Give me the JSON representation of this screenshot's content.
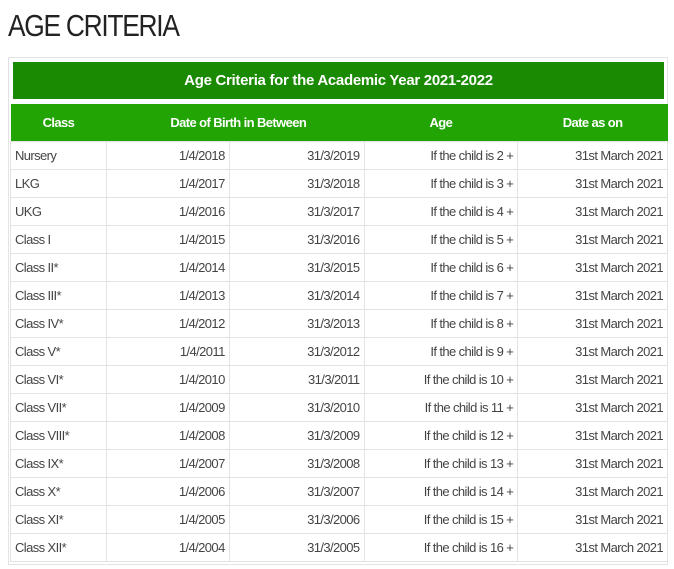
{
  "page_title": "AGE CRITERIA",
  "table_title": "Age Criteria for the Academic Year 2021-2022",
  "headers": [
    "Class",
    "Date of Birth in Between",
    "Age",
    "Date as on"
  ],
  "rows": [
    [
      "Nursery",
      "1/4/2018",
      "31/3/2019",
      "If the child is 2 +",
      "31st March 2021"
    ],
    [
      "LKG",
      "1/4/2017",
      "31/3/2018",
      "If the child is 3 +",
      "31st March 2021"
    ],
    [
      "UKG",
      "1/4/2016",
      "31/3/2017",
      "If the child is 4 +",
      "31st March 2021"
    ],
    [
      "Class I",
      "1/4/2015",
      "31/3/2016",
      "If the child is 5 +",
      "31st March 2021"
    ],
    [
      "Class II*",
      "1/4/2014",
      "31/3/2015",
      "If the child is 6 +",
      "31st March 2021"
    ],
    [
      "Class III*",
      "1/4/2013",
      "31/3/2014",
      "If the child is 7 +",
      "31st March 2021"
    ],
    [
      "Class IV*",
      "1/4/2012",
      "31/3/2013",
      "If the child is 8 +",
      "31st March 2021"
    ],
    [
      "Class V*",
      "1/4/2011",
      "31/3/2012",
      "If the child is 9 +",
      "31st March 2021"
    ],
    [
      "Class VI*",
      "1/4/2010",
      "31/3/2011",
      "If the child is 10 +",
      "31st March 2021"
    ],
    [
      "Class VII*",
      "1/4/2009",
      "31/3/2010",
      "If the child is 11 +",
      "31st March 2021"
    ],
    [
      "Class VIII*",
      "1/4/2008",
      "31/3/2009",
      "If the child is 12 +",
      "31st March 2021"
    ],
    [
      "Class IX*",
      "1/4/2007",
      "31/3/2008",
      "If the child is 13 +",
      "31st March 2021"
    ],
    [
      "Class X*",
      "1/4/2006",
      "31/3/2007",
      "If the child is 14 +",
      "31st March 2021"
    ],
    [
      "Class XI*",
      "1/4/2005",
      "31/3/2006",
      "If the child is 15 +",
      "31st March 2021"
    ],
    [
      "Class XII*",
      "1/4/2004",
      "31/3/2005",
      "If the child is 16 +",
      "31st March 2021"
    ]
  ],
  "colors": {
    "banner": "#1b8a03",
    "header": "#22a504"
  }
}
